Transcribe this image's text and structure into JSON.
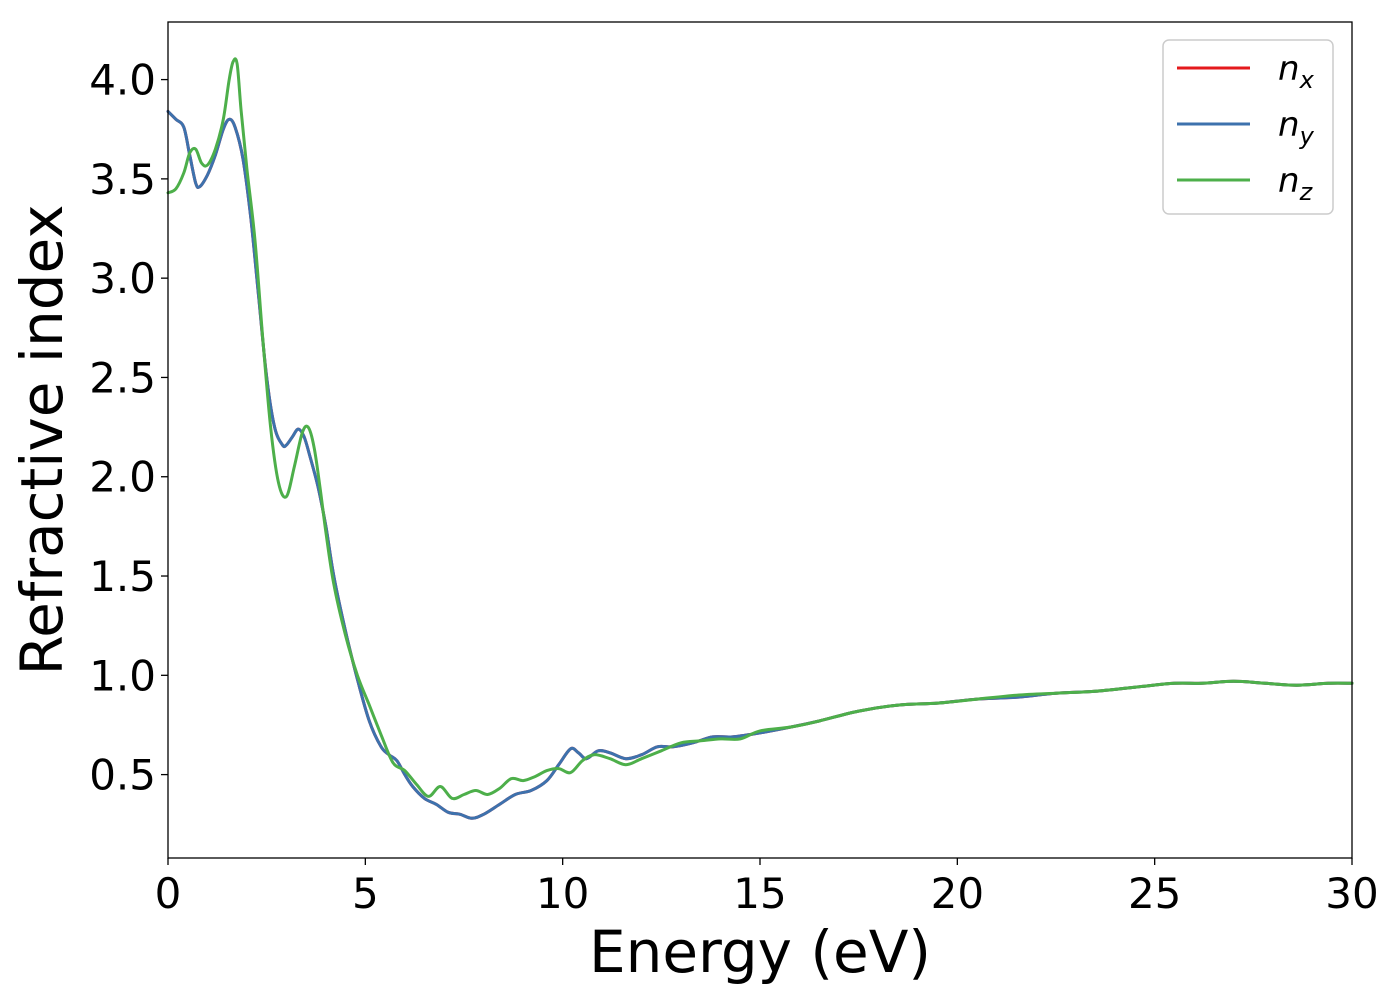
{
  "chart_data": {
    "type": "line",
    "title": "",
    "xlabel": "Energy (eV)",
    "ylabel": "Refractive index",
    "xlim": [
      0,
      30
    ],
    "ylim": [
      0.08,
      4.29
    ],
    "xticks": [
      0,
      5,
      10,
      15,
      20,
      25,
      30
    ],
    "xtick_labels": [
      "0",
      "5",
      "10",
      "15",
      "20",
      "25",
      "30"
    ],
    "yticks": [
      0.5,
      1.0,
      1.5,
      2.0,
      2.5,
      3.0,
      3.5,
      4.0
    ],
    "ytick_labels": [
      "0.5",
      "1.0",
      "1.5",
      "2.0",
      "2.5",
      "3.0",
      "3.5",
      "4.0"
    ],
    "grid": false,
    "legend_position": "top-right",
    "series": [
      {
        "name": "n",
        "sub": "x",
        "color": "#e41a1c",
        "x": [
          0,
          0.2,
          0.4,
          0.55,
          0.7,
          0.8,
          1.0,
          1.2,
          1.4,
          1.55,
          1.7,
          1.9,
          2.1,
          2.3,
          2.5,
          2.7,
          2.9,
          3.0,
          3.15,
          3.3,
          3.45,
          3.6,
          3.8,
          4.0,
          4.2,
          4.5,
          4.8,
          5.1,
          5.4,
          5.6,
          5.8,
          6.0,
          6.2,
          6.5,
          6.8,
          7.1,
          7.4,
          7.7,
          8.0,
          8.4,
          8.8,
          9.2,
          9.6,
          9.9,
          10.2,
          10.4,
          10.6,
          10.9,
          11.2,
          11.6,
          12.0,
          12.4,
          12.8,
          13.3,
          13.8,
          14.3,
          15.0,
          15.8,
          16.5,
          17.5,
          18.5,
          19.5,
          20.5,
          21.5,
          22.5,
          23.5,
          24.5,
          25.5,
          26.2,
          27.0,
          27.8,
          28.6,
          29.4,
          30.0
        ],
        "y": [
          3.84,
          3.8,
          3.76,
          3.62,
          3.48,
          3.46,
          3.52,
          3.62,
          3.75,
          3.8,
          3.76,
          3.6,
          3.3,
          2.9,
          2.5,
          2.25,
          2.16,
          2.16,
          2.2,
          2.24,
          2.2,
          2.1,
          1.95,
          1.75,
          1.5,
          1.22,
          0.98,
          0.77,
          0.64,
          0.6,
          0.57,
          0.5,
          0.44,
          0.38,
          0.35,
          0.31,
          0.3,
          0.28,
          0.3,
          0.35,
          0.4,
          0.42,
          0.47,
          0.55,
          0.63,
          0.61,
          0.58,
          0.62,
          0.61,
          0.58,
          0.6,
          0.64,
          0.64,
          0.66,
          0.69,
          0.69,
          0.71,
          0.74,
          0.77,
          0.82,
          0.85,
          0.86,
          0.88,
          0.89,
          0.91,
          0.92,
          0.94,
          0.96,
          0.96,
          0.97,
          0.96,
          0.95,
          0.96,
          0.96
        ]
      },
      {
        "name": "n",
        "sub": "y",
        "color": "#3d72ad",
        "x": [
          0,
          0.2,
          0.4,
          0.55,
          0.7,
          0.8,
          1.0,
          1.2,
          1.4,
          1.55,
          1.7,
          1.9,
          2.1,
          2.3,
          2.5,
          2.7,
          2.9,
          3.0,
          3.15,
          3.3,
          3.45,
          3.6,
          3.8,
          4.0,
          4.2,
          4.5,
          4.8,
          5.1,
          5.4,
          5.6,
          5.8,
          6.0,
          6.2,
          6.5,
          6.8,
          7.1,
          7.4,
          7.7,
          8.0,
          8.4,
          8.8,
          9.2,
          9.6,
          9.9,
          10.2,
          10.4,
          10.6,
          10.9,
          11.2,
          11.6,
          12.0,
          12.4,
          12.8,
          13.3,
          13.8,
          14.3,
          15.0,
          15.8,
          16.5,
          17.5,
          18.5,
          19.5,
          20.5,
          21.5,
          22.5,
          23.5,
          24.5,
          25.5,
          26.2,
          27.0,
          27.8,
          28.6,
          29.4,
          30.0
        ],
        "y": [
          3.84,
          3.8,
          3.76,
          3.62,
          3.48,
          3.46,
          3.52,
          3.62,
          3.75,
          3.8,
          3.76,
          3.6,
          3.3,
          2.9,
          2.5,
          2.25,
          2.16,
          2.16,
          2.2,
          2.24,
          2.2,
          2.1,
          1.95,
          1.75,
          1.5,
          1.22,
          0.98,
          0.77,
          0.64,
          0.6,
          0.57,
          0.5,
          0.44,
          0.38,
          0.35,
          0.31,
          0.3,
          0.28,
          0.3,
          0.35,
          0.4,
          0.42,
          0.47,
          0.55,
          0.63,
          0.61,
          0.58,
          0.62,
          0.61,
          0.58,
          0.6,
          0.64,
          0.64,
          0.66,
          0.69,
          0.69,
          0.71,
          0.74,
          0.77,
          0.82,
          0.85,
          0.86,
          0.88,
          0.89,
          0.91,
          0.92,
          0.94,
          0.96,
          0.96,
          0.97,
          0.96,
          0.95,
          0.96,
          0.96
        ]
      },
      {
        "name": "n",
        "sub": "z",
        "color": "#4daf4a",
        "x": [
          0,
          0.2,
          0.4,
          0.55,
          0.7,
          0.85,
          1.0,
          1.2,
          1.4,
          1.55,
          1.65,
          1.75,
          1.85,
          2.0,
          2.2,
          2.4,
          2.6,
          2.8,
          3.0,
          3.2,
          3.4,
          3.55,
          3.7,
          3.85,
          4.0,
          4.2,
          4.5,
          4.8,
          5.1,
          5.4,
          5.7,
          6.0,
          6.3,
          6.6,
          6.9,
          7.2,
          7.5,
          7.8,
          8.1,
          8.4,
          8.7,
          9.0,
          9.3,
          9.6,
          9.9,
          10.2,
          10.5,
          10.8,
          11.2,
          11.6,
          12.0,
          12.5,
          13.0,
          13.5,
          14.0,
          14.5,
          15.0,
          15.8,
          16.5,
          17.5,
          18.5,
          19.5,
          20.5,
          21.5,
          22.5,
          23.5,
          24.5,
          25.5,
          26.2,
          27.0,
          27.8,
          28.6,
          29.4,
          30.0
        ],
        "y": [
          3.43,
          3.45,
          3.53,
          3.63,
          3.65,
          3.58,
          3.57,
          3.65,
          3.8,
          4.0,
          4.09,
          4.08,
          3.85,
          3.55,
          3.2,
          2.7,
          2.25,
          1.97,
          1.9,
          2.05,
          2.22,
          2.25,
          2.15,
          1.95,
          1.72,
          1.46,
          1.2,
          1.0,
          0.85,
          0.7,
          0.56,
          0.52,
          0.45,
          0.39,
          0.44,
          0.38,
          0.4,
          0.42,
          0.4,
          0.43,
          0.48,
          0.47,
          0.49,
          0.52,
          0.53,
          0.51,
          0.57,
          0.6,
          0.58,
          0.55,
          0.58,
          0.62,
          0.66,
          0.67,
          0.68,
          0.68,
          0.72,
          0.74,
          0.77,
          0.82,
          0.85,
          0.86,
          0.88,
          0.9,
          0.91,
          0.92,
          0.94,
          0.96,
          0.96,
          0.97,
          0.96,
          0.95,
          0.96,
          0.96
        ]
      }
    ]
  }
}
